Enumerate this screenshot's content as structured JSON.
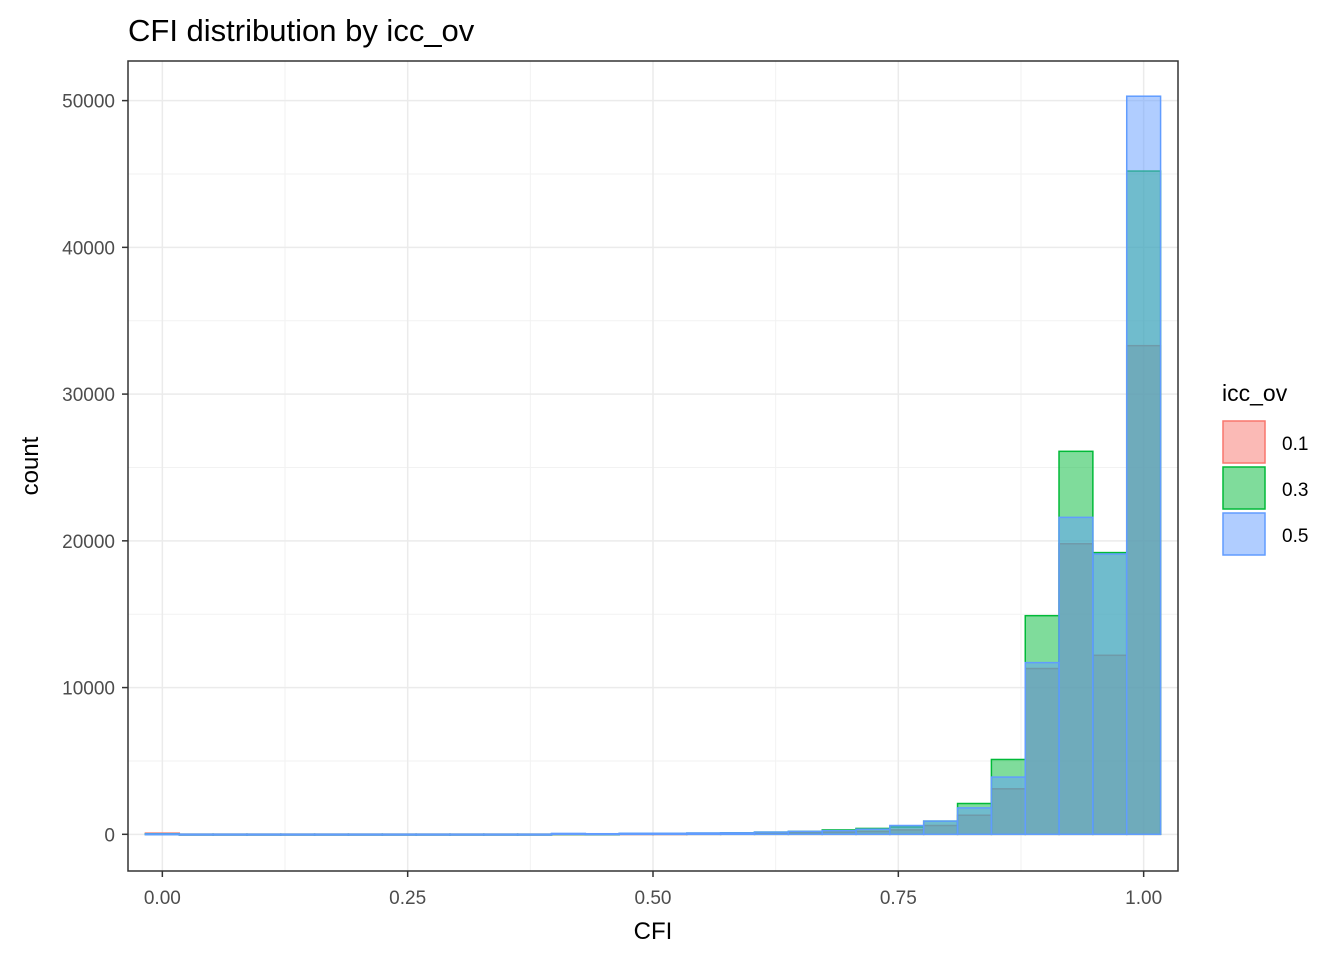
{
  "chart_data": {
    "type": "histogram",
    "title": "CFI distribution by icc_ov",
    "xlabel": "CFI",
    "ylabel": "count",
    "xlim": [
      -0.035,
      1.035
    ],
    "ylim": [
      -2500,
      52700
    ],
    "x_ticks": [
      0.0,
      0.25,
      0.5,
      0.75,
      1.0
    ],
    "x_tick_labels": [
      "0.00",
      "0.25",
      "0.50",
      "0.75",
      "1.00"
    ],
    "y_ticks": [
      0,
      10000,
      20000,
      30000,
      40000,
      50000
    ],
    "y_tick_labels": [
      "0",
      "10000",
      "20000",
      "30000",
      "40000",
      "50000"
    ],
    "grid": true,
    "bin_width": 0.0345,
    "bin_centers": [
      0.0,
      0.0345,
      0.069,
      0.1034,
      0.1379,
      0.1724,
      0.2069,
      0.2414,
      0.2759,
      0.3103,
      0.3448,
      0.3793,
      0.4138,
      0.4483,
      0.4828,
      0.5172,
      0.5517,
      0.5862,
      0.6207,
      0.6552,
      0.6897,
      0.7241,
      0.7586,
      0.7931,
      0.8276,
      0.8621,
      0.8966,
      0.931,
      0.9655,
      1.0
    ],
    "legend": {
      "title": "icc_ov",
      "position": "right"
    },
    "series": [
      {
        "name": "0.1",
        "fill": "#F8766D",
        "values": [
          80,
          10,
          10,
          10,
          10,
          10,
          10,
          10,
          10,
          10,
          10,
          10,
          30,
          20,
          40,
          40,
          50,
          60,
          80,
          100,
          150,
          200,
          300,
          600,
          1300,
          3100,
          11300,
          19800,
          12200,
          33300
        ]
      },
      {
        "name": "0.3",
        "fill": "#00BA38",
        "values": [
          40,
          10,
          10,
          10,
          10,
          10,
          10,
          10,
          10,
          10,
          10,
          10,
          40,
          30,
          60,
          60,
          80,
          100,
          150,
          200,
          300,
          400,
          500,
          900,
          2100,
          5100,
          14900,
          26100,
          19200,
          45200
        ]
      },
      {
        "name": "0.5",
        "fill": "#619CFF",
        "values": [
          30,
          10,
          10,
          10,
          10,
          10,
          10,
          10,
          10,
          10,
          10,
          10,
          60,
          40,
          70,
          70,
          90,
          100,
          150,
          200,
          250,
          350,
          600,
          900,
          1800,
          3900,
          11700,
          21600,
          19100,
          50300
        ]
      }
    ]
  }
}
